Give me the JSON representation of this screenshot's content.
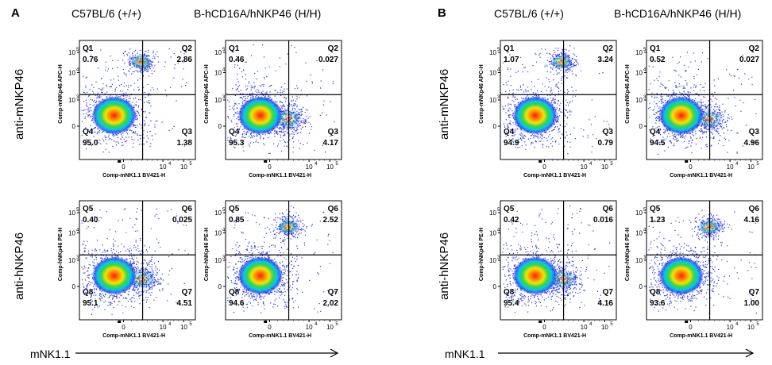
{
  "panels": [
    {
      "letter": "A"
    },
    {
      "letter": "B"
    }
  ],
  "col_titles": [
    "C57BL/6 (+/+)",
    "B-hCD16A/hNKP46 (H/H)"
  ],
  "row_titles": [
    "anti-mNKP46",
    "anti-hNKP46"
  ],
  "x_axis_label": "mNK1.1",
  "chart_data": [
    {
      "type": "scatter",
      "panel": "A",
      "row": "anti-mNKP46",
      "column": "C57BL/6 (+/+)",
      "xlabel": "Comp-mNK1.1 BV421-H",
      "ylabel": "Comp-mNKp46 APC-H",
      "quadrants": [
        {
          "name": "Q1",
          "value": "0.76"
        },
        {
          "name": "Q2",
          "value": "2.86"
        },
        {
          "name": "Q3",
          "value": "1.38"
        },
        {
          "name": "Q4",
          "value": "95.0"
        }
      ],
      "populations": [
        {
          "x": 0.3,
          "y": 0.63
        },
        {
          "x": 0.53,
          "y": 0.18
        }
      ]
    },
    {
      "type": "scatter",
      "panel": "A",
      "row": "anti-mNKP46",
      "column": "B-hCD16A/hNKP46 (H/H)",
      "xlabel": "Comp-mNK1.1 BV421-H",
      "ylabel": "Comp-mNKp46 APC-H",
      "quadrants": [
        {
          "name": "Q1",
          "value": "0.46"
        },
        {
          "name": "Q2",
          "value": "0.027"
        },
        {
          "name": "Q3",
          "value": "4.17"
        },
        {
          "name": "Q4",
          "value": "95.3"
        }
      ],
      "populations": [
        {
          "x": 0.3,
          "y": 0.63
        },
        {
          "x": 0.5,
          "y": 0.66
        }
      ]
    },
    {
      "type": "scatter",
      "panel": "A",
      "row": "anti-hNKP46",
      "column": "C57BL/6 (+/+)",
      "xlabel": "Comp-mNK1.1 BV421-H",
      "ylabel": "Comp-hNKp46 PE-H",
      "quadrants": [
        {
          "name": "Q5",
          "value": "0.40"
        },
        {
          "name": "Q6",
          "value": "0.025"
        },
        {
          "name": "Q7",
          "value": "4.51"
        },
        {
          "name": "Q8",
          "value": "95.1"
        }
      ],
      "populations": [
        {
          "x": 0.3,
          "y": 0.63
        },
        {
          "x": 0.5,
          "y": 0.66
        }
      ]
    },
    {
      "type": "scatter",
      "panel": "A",
      "row": "anti-hNKP46",
      "column": "B-hCD16A/hNKP46 (H/H)",
      "xlabel": "Comp-mNK1.1 BV421-H",
      "ylabel": "Comp-hNKp46 PE-H",
      "quadrants": [
        {
          "name": "Q5",
          "value": "0.85"
        },
        {
          "name": "Q6",
          "value": "2.52"
        },
        {
          "name": "Q7",
          "value": "2.02"
        },
        {
          "name": "Q8",
          "value": "94.6"
        }
      ],
      "populations": [
        {
          "x": 0.3,
          "y": 0.63
        },
        {
          "x": 0.54,
          "y": 0.22
        }
      ]
    },
    {
      "type": "scatter",
      "panel": "B",
      "row": "anti-mNKP46",
      "column": "C57BL/6 (+/+)",
      "xlabel": "Comp-mNK1.1 BV421-H",
      "ylabel": "Comp-mNKp46 APC-H",
      "quadrants": [
        {
          "name": "Q1",
          "value": "1.07"
        },
        {
          "name": "Q2",
          "value": "3.24"
        },
        {
          "name": "Q3",
          "value": "0.79"
        },
        {
          "name": "Q4",
          "value": "94.9"
        }
      ],
      "populations": [
        {
          "x": 0.3,
          "y": 0.63
        },
        {
          "x": 0.53,
          "y": 0.18
        }
      ]
    },
    {
      "type": "scatter",
      "panel": "B",
      "row": "anti-mNKP46",
      "column": "B-hCD16A/hNKP46 (H/H)",
      "xlabel": "Comp-mNK1.1 BV421-H",
      "ylabel": "Comp-mNKp46 APC-H",
      "quadrants": [
        {
          "name": "Q1",
          "value": "0.52"
        },
        {
          "name": "Q2",
          "value": "0.027"
        },
        {
          "name": "Q3",
          "value": "4.96"
        },
        {
          "name": "Q4",
          "value": "94.5"
        }
      ],
      "populations": [
        {
          "x": 0.3,
          "y": 0.63
        },
        {
          "x": 0.5,
          "y": 0.66
        }
      ]
    },
    {
      "type": "scatter",
      "panel": "B",
      "row": "anti-hNKP46",
      "column": "C57BL/6 (+/+)",
      "xlabel": "Comp-mNK1.1 BV421-H",
      "ylabel": "Comp-hNKp46 PE-H",
      "quadrants": [
        {
          "name": "Q5",
          "value": "0.42"
        },
        {
          "name": "Q6",
          "value": "0.016"
        },
        {
          "name": "Q7",
          "value": "4.16"
        },
        {
          "name": "Q8",
          "value": "95.4"
        }
      ],
      "populations": [
        {
          "x": 0.3,
          "y": 0.63
        },
        {
          "x": 0.5,
          "y": 0.66
        }
      ]
    },
    {
      "type": "scatter",
      "panel": "B",
      "row": "anti-hNKP46",
      "column": "B-hCD16A/hNKP46 (H/H)",
      "xlabel": "Comp-mNK1.1 BV421-H",
      "ylabel": "Comp-hNKp46 PE-H",
      "quadrants": [
        {
          "name": "Q5",
          "value": "1.23"
        },
        {
          "name": "Q6",
          "value": "4.16"
        },
        {
          "name": "Q7",
          "value": "1.00"
        },
        {
          "name": "Q8",
          "value": "93.6"
        }
      ],
      "populations": [
        {
          "x": 0.3,
          "y": 0.63
        },
        {
          "x": 0.54,
          "y": 0.22
        }
      ]
    }
  ]
}
